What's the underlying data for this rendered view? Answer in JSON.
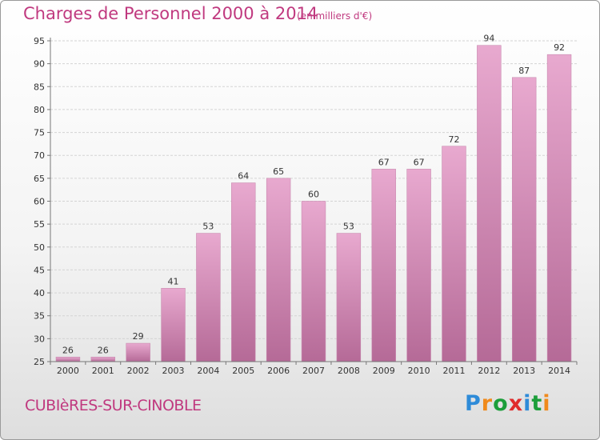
{
  "header": {
    "title": "Charges de Personnel 2000 à 2014",
    "subtitle": "(en milliers d'€)"
  },
  "footer": {
    "commune": "CUBIèRES-SUR-CINOBLE",
    "logo": {
      "letters": [
        "P",
        "r",
        "o",
        "x",
        "i",
        "t",
        "i"
      ],
      "colors": [
        "#2e8bd8",
        "#f08a1c",
        "#1c9e3a",
        "#e02c2c",
        "#2e8bd8",
        "#1c9e3a",
        "#f08a1c"
      ]
    }
  },
  "colors": {
    "bar_light": "#e8a9cf",
    "bar_dark": "#b56a97",
    "title": "#c0397f"
  },
  "chart_data": {
    "type": "bar",
    "title": "Charges de Personnel 2000 à 2014",
    "subtitle": "(en milliers d'€)",
    "xlabel": "",
    "ylabel": "",
    "categories": [
      "2000",
      "2001",
      "2002",
      "2003",
      "2004",
      "2005",
      "2006",
      "2007",
      "2008",
      "2009",
      "2010",
      "2011",
      "2012",
      "2013",
      "2014"
    ],
    "values": [
      26,
      26,
      29,
      41,
      53,
      64,
      65,
      60,
      53,
      67,
      67,
      72,
      94,
      87,
      92
    ],
    "ylim": [
      25,
      95
    ],
    "yticks": [
      25,
      30,
      35,
      40,
      45,
      50,
      55,
      60,
      65,
      70,
      75,
      80,
      85,
      90,
      95
    ],
    "grid": "horizontal",
    "legend": "none"
  }
}
